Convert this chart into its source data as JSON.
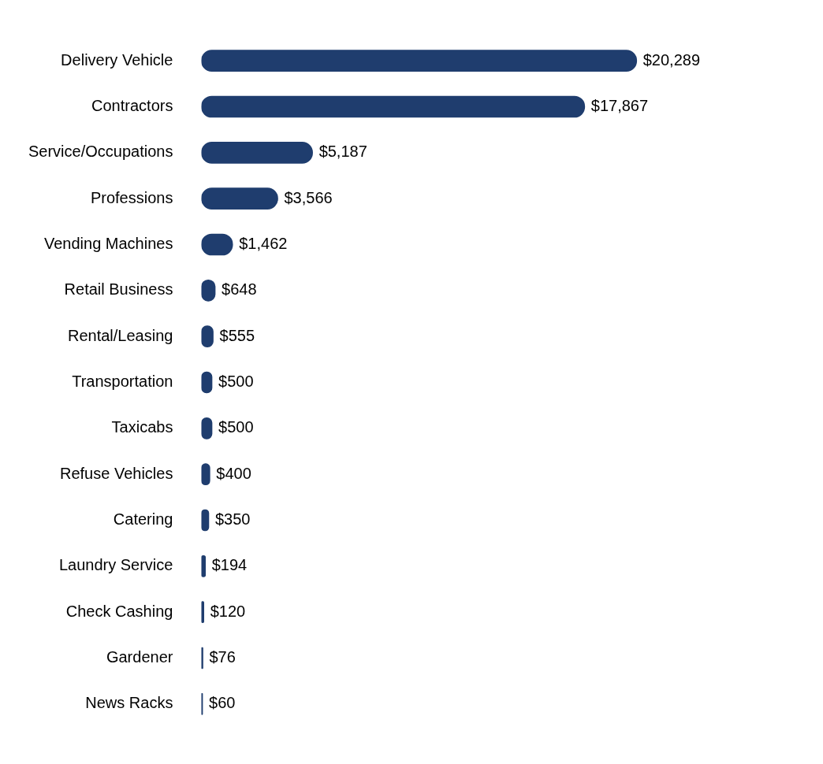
{
  "chart_data": {
    "type": "bar",
    "orientation": "horizontal",
    "categories": [
      "Delivery Vehicle",
      "Contractors",
      "Service/Occupations",
      "Professions",
      "Vending Machines",
      "Retail Business",
      "Rental/Leasing",
      "Transportation",
      "Taxicabs",
      "Refuse Vehicles",
      "Catering",
      "Laundry Service",
      "Check Cashing",
      "Gardener",
      "News Racks"
    ],
    "values": [
      20289,
      17867,
      5187,
      3566,
      1462,
      648,
      555,
      500,
      500,
      400,
      350,
      194,
      120,
      76,
      60
    ],
    "value_labels": [
      "$20,289",
      "$17,867",
      "$5,187",
      "$3,566",
      "$1,462",
      "$648",
      "$555",
      "$500",
      "$500",
      "$400",
      "$350",
      "$194",
      "$120",
      "$76",
      "$60"
    ],
    "color": "#1f3d6e",
    "grid": false,
    "legend": false
  }
}
